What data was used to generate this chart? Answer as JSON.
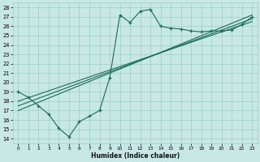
{
  "xlabel": "Humidex (Indice chaleur)",
  "xlim": [
    -0.5,
    23.5
  ],
  "ylim": [
    13.5,
    28.5
  ],
  "xticks": [
    0,
    1,
    2,
    3,
    4,
    5,
    6,
    7,
    8,
    9,
    10,
    11,
    12,
    13,
    14,
    15,
    16,
    17,
    18,
    19,
    20,
    21,
    22,
    23
  ],
  "yticks": [
    14,
    15,
    16,
    17,
    18,
    19,
    20,
    21,
    22,
    23,
    24,
    25,
    26,
    27,
    28
  ],
  "bg_color": "#c8e8e5",
  "grid_color": "#9ecfcb",
  "line_color": "#1a6b5a",
  "curve_x": [
    0,
    1,
    2,
    3,
    4,
    5,
    6,
    7,
    8,
    9,
    10,
    11,
    12,
    13,
    14,
    15,
    16,
    17,
    18,
    19,
    20,
    21,
    22,
    23
  ],
  "curve_y": [
    19.0,
    18.4,
    17.5,
    16.6,
    15.1,
    14.2,
    15.8,
    16.4,
    17.0,
    20.5,
    27.2,
    26.4,
    27.6,
    27.8,
    26.0,
    25.8,
    25.7,
    25.5,
    25.4,
    25.5,
    25.5,
    25.6,
    26.2,
    27.0
  ],
  "line1_x": [
    0,
    23
  ],
  "line1_y": [
    18.0,
    26.5
  ],
  "line2_x": [
    0,
    23
  ],
  "line2_y": [
    17.5,
    26.8
  ],
  "line3_x": [
    0,
    23
  ],
  "line3_y": [
    17.0,
    27.2
  ],
  "marker": "+",
  "markersize": 3,
  "markeredgewidth": 0.9,
  "linewidth": 0.8
}
